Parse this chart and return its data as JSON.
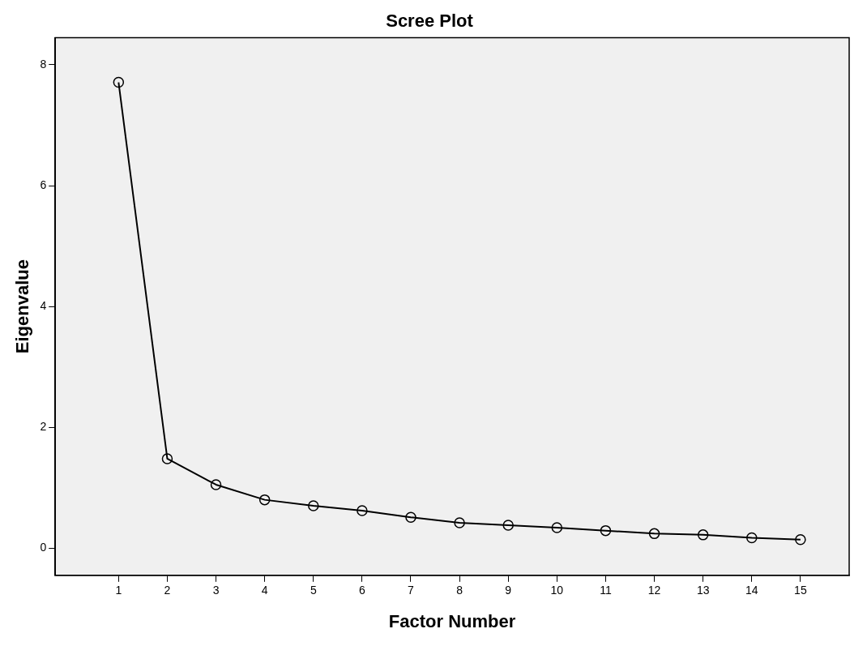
{
  "chart_data": {
    "type": "line",
    "title": "Scree Plot",
    "xlabel": "Factor Number",
    "ylabel": "Eigenvalue",
    "x": [
      1,
      2,
      3,
      4,
      5,
      6,
      7,
      8,
      9,
      10,
      11,
      12,
      13,
      14,
      15
    ],
    "series": [
      {
        "color": "#000000",
        "values": [
          7.71,
          1.48,
          1.05,
          0.8,
          0.7,
          0.62,
          0.51,
          0.42,
          0.38,
          0.34,
          0.29,
          0.24,
          0.22,
          0.17,
          0.14
        ]
      }
    ],
    "xlim": [
      -0.3,
      16
    ],
    "xticks": [
      1,
      2,
      3,
      4,
      5,
      6,
      7,
      8,
      9,
      10,
      11,
      12,
      13,
      14,
      15
    ],
    "ylim": [
      -0.45,
      8.45
    ],
    "yticks": [
      0,
      2,
      4,
      6,
      8
    ],
    "grid": false,
    "legend": false,
    "marker": "circle",
    "line_style": "solid"
  }
}
